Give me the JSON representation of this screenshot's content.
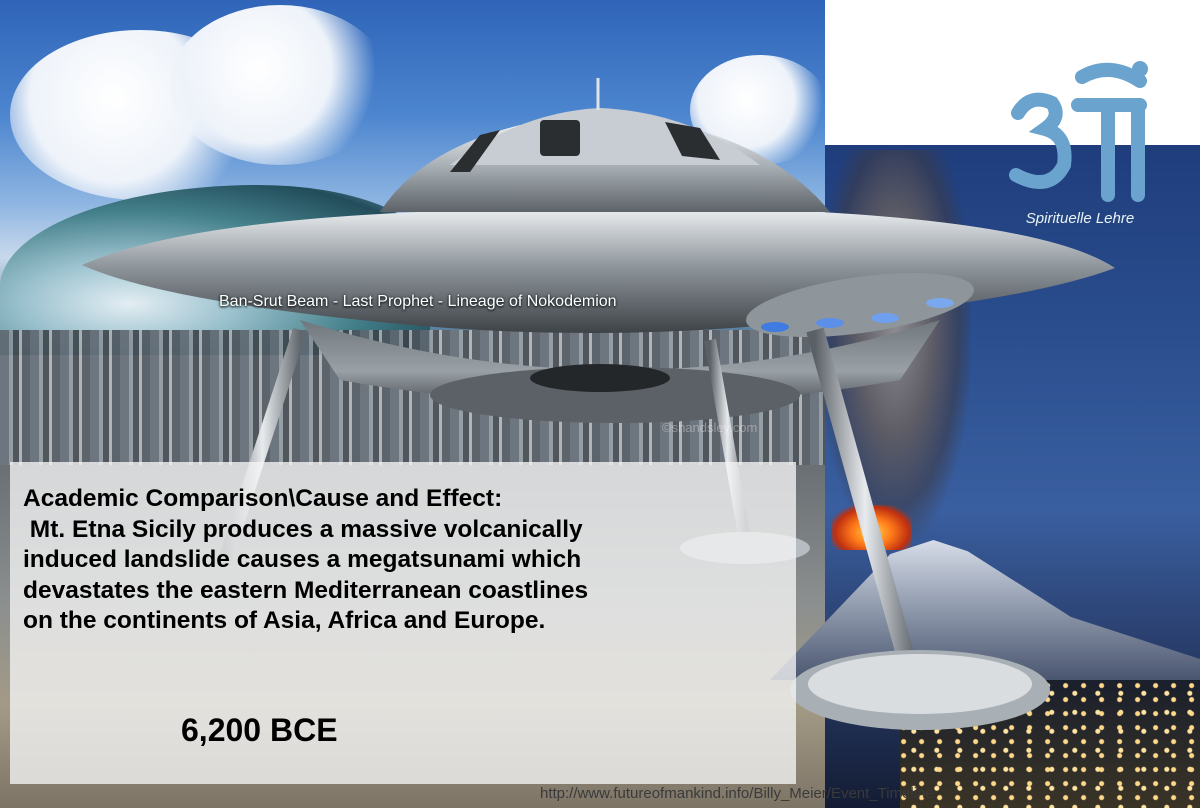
{
  "subtitle": "Ban-Srut Beam  - Last Prophet - Lineage of Nokodemion",
  "description_lines": [
    "Academic Comparison\\Cause and Effect:",
    " Mt. Etna Sicily produces a massive volcanically",
    "induced landslide causes a megatsunami which",
    "devastates the eastern Mediterranean coastlines",
    "on the continents of Asia, Africa and Europe."
  ],
  "date": "6,200 BCE",
  "source_url": "http://www.futureofmankind.info/Billy_Meier/Event_Timeline",
  "logo": {
    "glyph": "ॐ",
    "text": "Spirituelle Lehre",
    "color": "#6ba3cf"
  },
  "watermark": "©shandsley.com",
  "icons": [
    "om-logo-icon"
  ]
}
